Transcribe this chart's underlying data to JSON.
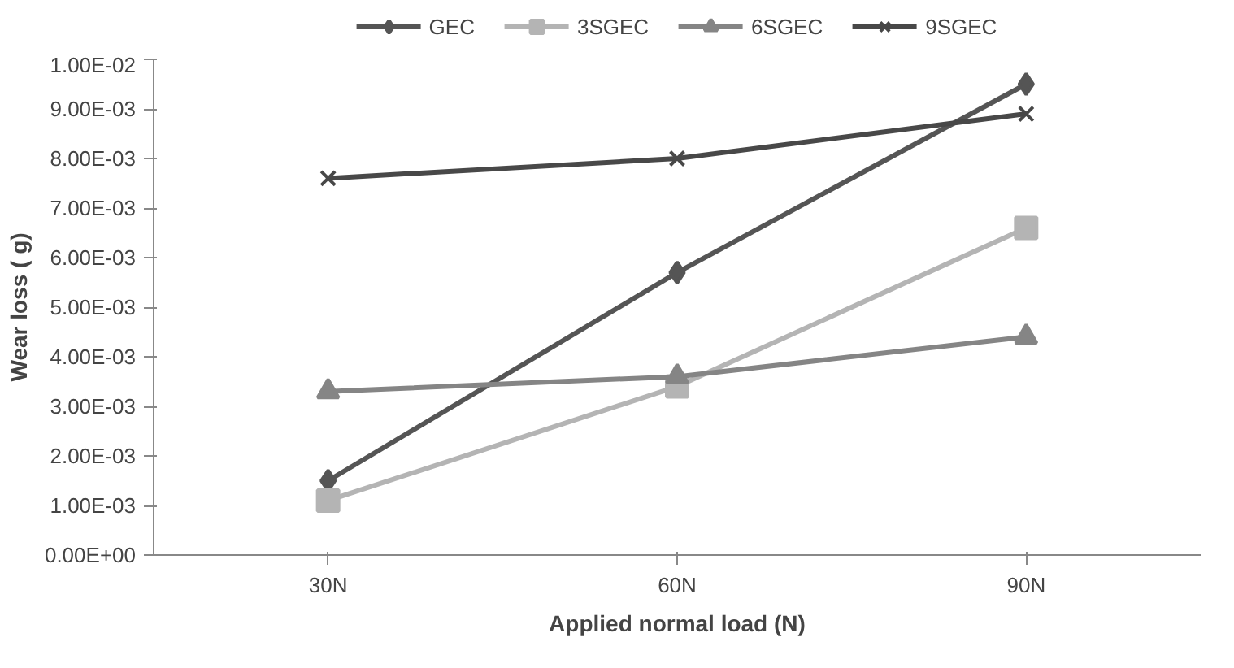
{
  "chart_data": {
    "type": "line",
    "xlabel": "Applied normal load (N)",
    "ylabel": "Wear loss ( g)",
    "categories": [
      "30N",
      "60N",
      "90N"
    ],
    "series": [
      {
        "name": "GEC",
        "color": "#555555",
        "marker": "diamond",
        "values": [
          0.0015,
          0.0057,
          0.0095
        ]
      },
      {
        "name": "3SGEC",
        "color": "#b4b4b4",
        "marker": "square",
        "values": [
          0.0011,
          0.0034,
          0.0066
        ]
      },
      {
        "name": "6SGEC",
        "color": "#858585",
        "marker": "triangle",
        "values": [
          0.0033,
          0.0036,
          0.0044
        ]
      },
      {
        "name": "9SGEC",
        "color": "#484848",
        "marker": "cross",
        "values": [
          0.0076,
          0.008,
          0.0089
        ]
      }
    ],
    "ylim": [
      0,
      0.01
    ],
    "yticks": [
      {
        "value": 0,
        "label": "0.00E+00"
      },
      {
        "value": 0.001,
        "label": "1.00E-03"
      },
      {
        "value": 0.002,
        "label": "2.00E-03"
      },
      {
        "value": 0.003,
        "label": "3.00E-03"
      },
      {
        "value": 0.004,
        "label": "4.00E-03"
      },
      {
        "value": 0.005,
        "label": "5.00E-03"
      },
      {
        "value": 0.006,
        "label": "6.00E-03"
      },
      {
        "value": 0.007,
        "label": "7.00E-03"
      },
      {
        "value": 0.008,
        "label": "8.00E-03"
      },
      {
        "value": 0.009,
        "label": "9.00E-03"
      },
      {
        "value": 0.01,
        "label": "1.00E-02"
      }
    ],
    "grid": false,
    "legend": "top",
    "line_style": "solid"
  }
}
